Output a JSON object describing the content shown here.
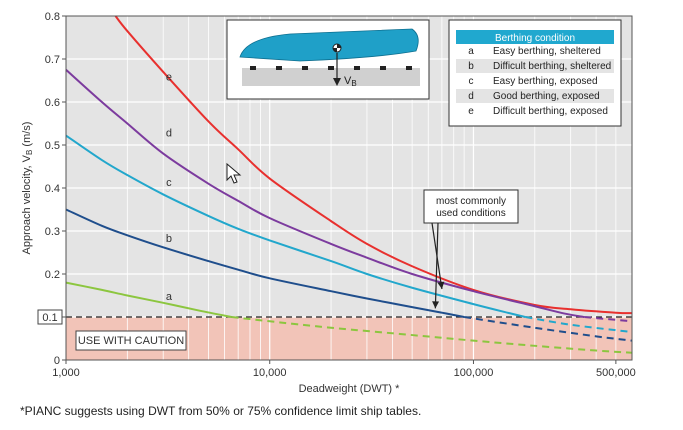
{
  "chart_data": {
    "type": "line",
    "xscale": "log",
    "xlim": [
      1000,
      600000
    ],
    "ylim": [
      0,
      0.8
    ],
    "xlabel": "Deadweight (DWT) *",
    "ylabel": "Approach velocity, V_B (m/s)",
    "ylabel_main": "Approach velocity, V",
    "ylabel_sub": "B",
    "ylabel_unit": " (m/s)",
    "x_ticks": [
      {
        "value": 1000,
        "label": "1,000"
      },
      {
        "value": 10000,
        "label": "10,000"
      },
      {
        "value": 100000,
        "label": "100,000"
      },
      {
        "value": 500000,
        "label": "500,000"
      }
    ],
    "y_ticks": [
      {
        "value": 0,
        "label": "0"
      },
      {
        "value": 0.1,
        "label": "0.1",
        "boxed": true
      },
      {
        "value": 0.2,
        "label": "0.2"
      },
      {
        "value": 0.3,
        "label": "0.3"
      },
      {
        "value": 0.4,
        "label": "0.4"
      },
      {
        "value": 0.5,
        "label": "0.5"
      },
      {
        "value": 0.6,
        "label": "0.6"
      },
      {
        "value": 0.7,
        "label": "0.7"
      },
      {
        "value": 0.8,
        "label": "0.8"
      }
    ],
    "caution": {
      "label": "USE WITH CAUTION",
      "below": 0.1,
      "color": "#f2c4b8"
    },
    "series": [
      {
        "id": "e",
        "color": "#e8302e",
        "label_at": [
          3200,
          0.65
        ],
        "points": [
          [
            1750,
            0.8
          ],
          [
            2000,
            0.765
          ],
          [
            3000,
            0.67
          ],
          [
            5000,
            0.555
          ],
          [
            7000,
            0.49
          ],
          [
            10000,
            0.422
          ],
          [
            20000,
            0.323
          ],
          [
            30000,
            0.27
          ],
          [
            50000,
            0.218
          ],
          [
            100000,
            0.163
          ],
          [
            200000,
            0.128
          ],
          [
            300000,
            0.118
          ],
          [
            500000,
            0.11
          ],
          [
            600000,
            0.109
          ]
        ]
      },
      {
        "id": "d",
        "color": "#7c3b9e",
        "label_at": [
          3200,
          0.52
        ],
        "points": [
          [
            1000,
            0.675
          ],
          [
            1500,
            0.6
          ],
          [
            2000,
            0.55
          ],
          [
            3000,
            0.48
          ],
          [
            5000,
            0.41
          ],
          [
            7000,
            0.37
          ],
          [
            10000,
            0.33
          ],
          [
            20000,
            0.27
          ],
          [
            30000,
            0.238
          ],
          [
            50000,
            0.2
          ],
          [
            100000,
            0.16
          ],
          [
            200000,
            0.125
          ],
          [
            280000,
            0.108
          ],
          [
            350000,
            0.1
          ],
          [
            600000,
            0.09
          ]
        ],
        "dashed_after": 350000
      },
      {
        "id": "c",
        "color": "#22a7cc",
        "label_at": [
          3200,
          0.405
        ],
        "points": [
          [
            1000,
            0.522
          ],
          [
            1500,
            0.465
          ],
          [
            2000,
            0.43
          ],
          [
            3000,
            0.385
          ],
          [
            5000,
            0.335
          ],
          [
            7000,
            0.305
          ],
          [
            10000,
            0.278
          ],
          [
            20000,
            0.23
          ],
          [
            30000,
            0.2
          ],
          [
            50000,
            0.168
          ],
          [
            100000,
            0.13
          ],
          [
            150000,
            0.109
          ],
          [
            180000,
            0.1
          ],
          [
            300000,
            0.082
          ],
          [
            600000,
            0.065
          ]
        ],
        "dashed_after": 180000
      },
      {
        "id": "b",
        "color": "#1f4e8c",
        "label_at": [
          3200,
          0.275
        ],
        "points": [
          [
            1000,
            0.35
          ],
          [
            1500,
            0.312
          ],
          [
            2000,
            0.29
          ],
          [
            3000,
            0.262
          ],
          [
            5000,
            0.23
          ],
          [
            7000,
            0.21
          ],
          [
            10000,
            0.19
          ],
          [
            20000,
            0.16
          ],
          [
            30000,
            0.143
          ],
          [
            50000,
            0.123
          ],
          [
            70000,
            0.11
          ],
          [
            90000,
            0.1
          ],
          [
            200000,
            0.075
          ],
          [
            400000,
            0.055
          ],
          [
            600000,
            0.045
          ]
        ],
        "dashed_after": 90000
      },
      {
        "id": "a",
        "color": "#8cc63f",
        "label_at": [
          3200,
          0.14
        ],
        "points": [
          [
            1000,
            0.18
          ],
          [
            1500,
            0.163
          ],
          [
            2000,
            0.15
          ],
          [
            3000,
            0.133
          ],
          [
            4500,
            0.115
          ],
          [
            6500,
            0.1
          ],
          [
            10000,
            0.09
          ],
          [
            20000,
            0.075
          ],
          [
            50000,
            0.058
          ],
          [
            100000,
            0.045
          ],
          [
            200000,
            0.033
          ],
          [
            400000,
            0.022
          ],
          [
            600000,
            0.017
          ]
        ],
        "dashed_after": 6500
      }
    ],
    "annotation": {
      "lines": [
        "most commonly",
        "used conditions"
      ],
      "targets": [
        "c",
        "b"
      ]
    },
    "legend": {
      "title": "Berthing condition",
      "placement": "top-right",
      "items": [
        {
          "key": "a",
          "label": "Easy berthing, sheltered"
        },
        {
          "key": "b",
          "label": "Difficult berthing, sheltered"
        },
        {
          "key": "c",
          "label": "Easy berthing, exposed"
        },
        {
          "key": "d",
          "label": "Good berthing, exposed"
        },
        {
          "key": "e",
          "label": "Difficult berthing, exposed"
        }
      ]
    },
    "inset": {
      "label_main": "V",
      "label_sub": "B"
    }
  },
  "footnote": "*PIANC suggests using DWT from 50% or 75% confidence limit ship tables.",
  "colors": {
    "plot_bg": "#e4e4e4",
    "grid": "#ffffff",
    "legend_title_bg": "#20a8cf",
    "ship": "#1fa0c8"
  }
}
